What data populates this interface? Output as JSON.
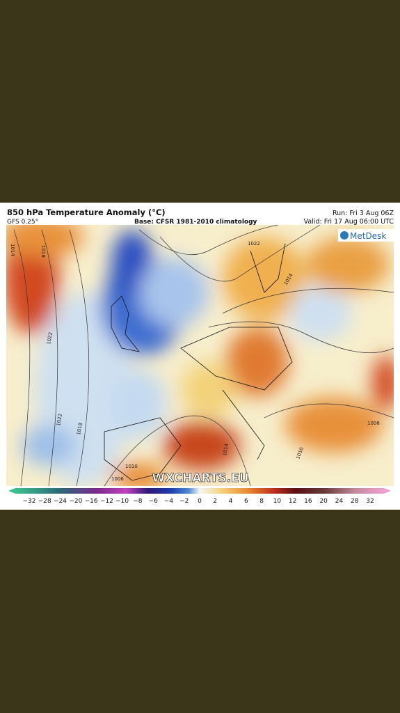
{
  "header": {
    "title": "850 hPa Temperature Anomaly (°C)",
    "model": "GFS 0.25°",
    "base": "Base: CFSR 1981-2010 climatology",
    "run": "Run: Fri 3 Aug 06Z",
    "valid": "Valid: Fri 17 Aug 06:00 UTC"
  },
  "logo": "MetDesk",
  "watermark": "WXCHARTS.EU",
  "isobar_labels": [
    "1014",
    "1018",
    "1022",
    "1022",
    "1018",
    "1010",
    "1006",
    "1014",
    "1014",
    "1010",
    "1006",
    "1022"
  ],
  "colorbar": {
    "labels": [
      "−32",
      "−28",
      "−24",
      "−20",
      "−16",
      "−12",
      "−10",
      "−8",
      "−6",
      "−4",
      "−2",
      "0",
      "2",
      "4",
      "6",
      "8",
      "10",
      "12",
      "16",
      "20",
      "24",
      "28",
      "32"
    ]
  }
}
